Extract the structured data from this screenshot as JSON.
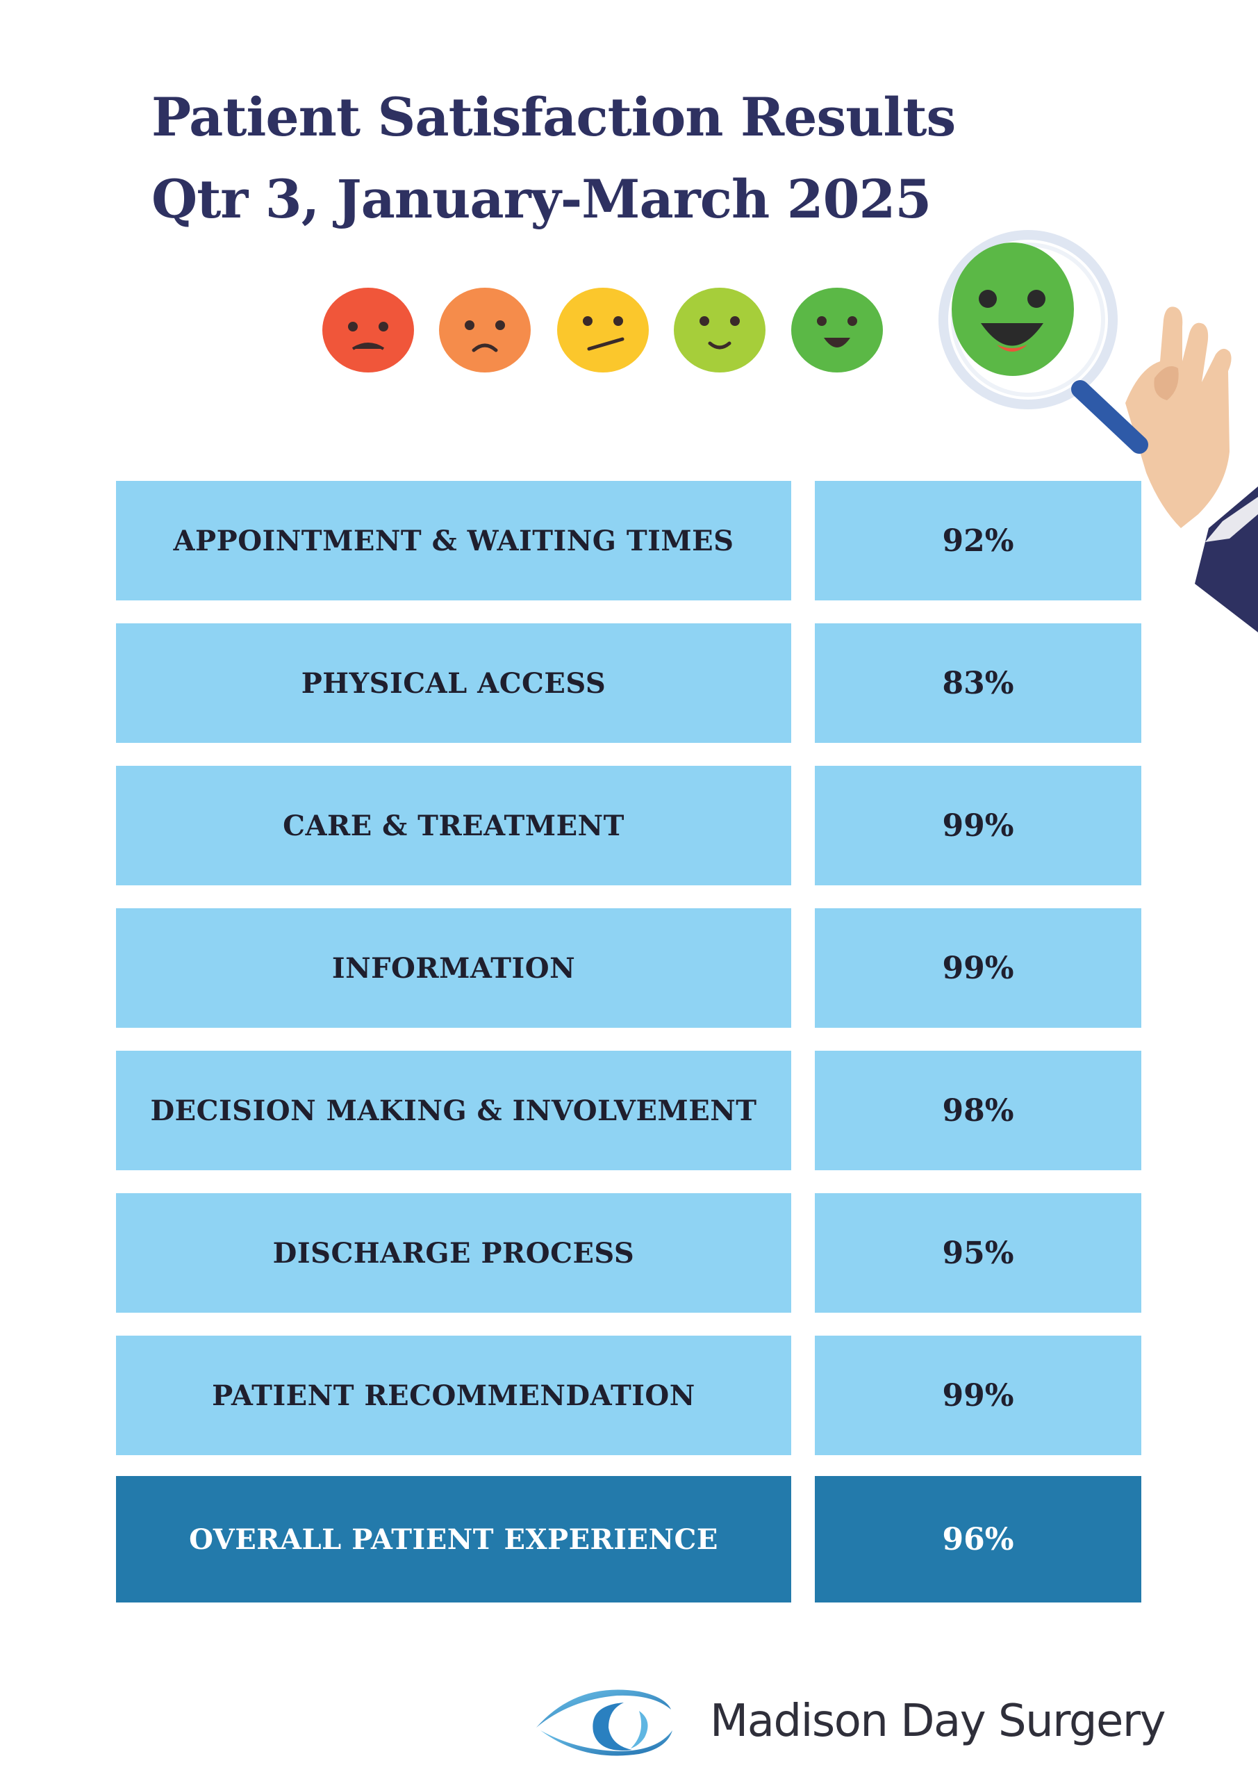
{
  "title": {
    "line1": "Patient Satisfaction Results",
    "line2": "Qtr 3, January-March 2025"
  },
  "rating_faces": [
    {
      "icon": "very-unhappy-face-icon",
      "color": "#f0563a"
    },
    {
      "icon": "unhappy-face-icon",
      "color": "#f58c4b"
    },
    {
      "icon": "neutral-face-icon",
      "color": "#fbc72c"
    },
    {
      "icon": "content-face-icon",
      "color": "#a6ce3a"
    },
    {
      "icon": "happy-face-icon",
      "color": "#5bb846"
    }
  ],
  "illustration": {
    "icon": "magnifying-glass-happy-face-icon",
    "face_color": "#5bb846",
    "handle_color": "#2e5aa8",
    "skin_color": "#f1c8a4",
    "sleeve_color": "#2e3161"
  },
  "results": [
    {
      "label": "APPOINTMENT & WAITING TIMES",
      "value": "92%"
    },
    {
      "label": "PHYSICAL ACCESS",
      "value": "83%"
    },
    {
      "label": "CARE & TREATMENT",
      "value": "99%"
    },
    {
      "label": "INFORMATION",
      "value": "99%"
    },
    {
      "label": "DECISION MAKING & INVOLVEMENT",
      "value": "98%"
    },
    {
      "label": "DISCHARGE PROCESS",
      "value": "95%"
    },
    {
      "label": "PATIENT RECOMMENDATION",
      "value": "99%"
    }
  ],
  "overall": {
    "label": "OVERALL PATIENT EXPERIENCE",
    "value": "96%"
  },
  "colors": {
    "row": "#8fd3f3",
    "overall": "#237aab",
    "title": "#2e3161"
  },
  "footer": {
    "logo_icon": "eye-logo-icon",
    "brand": "Madison Day Surgery"
  }
}
